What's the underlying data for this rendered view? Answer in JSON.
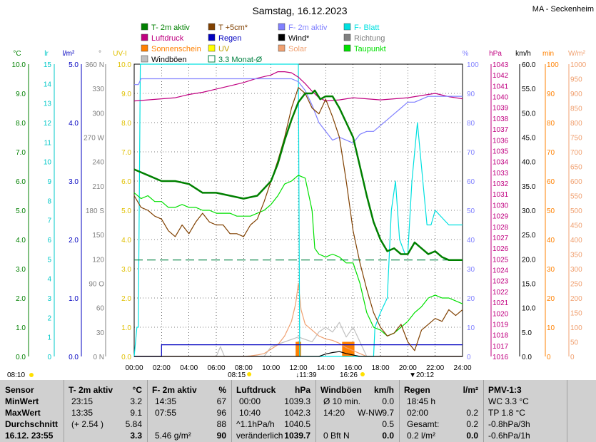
{
  "header": {
    "title": "Samstag, 16.12.2023",
    "station": "MA - Seckenheim"
  },
  "legend": [
    {
      "label": "T- 2m aktiv",
      "color": "#008000",
      "kind": "box"
    },
    {
      "label": "T +5cm*",
      "color": "#804000",
      "kind": "box"
    },
    {
      "label": "F- 2m aktiv",
      "color": "#8080ff",
      "kind": "box"
    },
    {
      "label": "F- Blatt",
      "color": "#00e0e0",
      "kind": "box"
    },
    {
      "label": "Luftdruck",
      "color": "#c00080",
      "kind": "box"
    },
    {
      "label": "Regen",
      "color": "#0000c0",
      "kind": "box"
    },
    {
      "label": "Wind*",
      "color": "#000000",
      "kind": "box"
    },
    {
      "label": "Richtung",
      "color": "#808080",
      "kind": "box"
    },
    {
      "label": "Sonnenschein",
      "color": "#ff8000",
      "kind": "box"
    },
    {
      "label": "UV",
      "color": "#ffff00",
      "kind": "box"
    },
    {
      "label": "Solar",
      "color": "#f0a070",
      "kind": "box"
    },
    {
      "label": "Taupunkt",
      "color": "#00e000",
      "kind": "box"
    },
    {
      "label": "Windböen",
      "color": "#c0c0c0",
      "kind": "box"
    },
    {
      "label": "3.3 Monat-Ø",
      "color": "#008040",
      "kind": "hollow"
    }
  ],
  "axes": {
    "unit_c": "°C",
    "unit_lr": "lr",
    "unit_lm2": "l/m²",
    "unit_deg": "°",
    "unit_uv": "UV-I",
    "unit_pct": "%",
    "unit_hpa": "hPa",
    "unit_kmh": "km/h",
    "unit_min": "min",
    "unit_wm2": "W/m²",
    "temp_ticks": [
      "0.0",
      "1.0",
      "2.0",
      "3.0",
      "4.0",
      "5.0",
      "6.0",
      "7.0",
      "8.0",
      "9.0",
      "10.0"
    ],
    "lr_ticks": [
      "0",
      "1",
      "2",
      "3",
      "4",
      "5",
      "6",
      "7",
      "8",
      "9",
      "10",
      "11",
      "12",
      "13",
      "14",
      "15"
    ],
    "rain_ticks": [
      "0.0",
      "1.0",
      "2.0",
      "3.0",
      "4.0",
      "5.0"
    ],
    "dir_ticks": [
      {
        "v": 0,
        "t": "0 N"
      },
      {
        "v": 30,
        "t": "30"
      },
      {
        "v": 60,
        "t": "60"
      },
      {
        "v": 90,
        "t": "90 O"
      },
      {
        "v": 120,
        "t": "120"
      },
      {
        "v": 150,
        "t": "150"
      },
      {
        "v": 180,
        "t": "180 S"
      },
      {
        "v": 210,
        "t": "210"
      },
      {
        "v": 240,
        "t": "240"
      },
      {
        "v": 270,
        "t": "270 W"
      },
      {
        "v": 300,
        "t": "300"
      },
      {
        "v": 330,
        "t": "330"
      },
      {
        "v": 360,
        "t": "360 N"
      }
    ],
    "uv_ticks": [
      "0.0",
      "1.0",
      "2.0",
      "3.0",
      "4.0",
      "5.0",
      "6.0",
      "7.0",
      "8.0",
      "9.0",
      "10.0"
    ],
    "pct_ticks": [
      "0",
      "10",
      "20",
      "30",
      "40",
      "50",
      "60",
      "70",
      "80",
      "90",
      "100"
    ],
    "hpa_ticks": [
      "1016",
      "1017",
      "1018",
      "1019",
      "1020",
      "1021",
      "1022",
      "1023",
      "1024",
      "1025",
      "1026",
      "1027",
      "1028",
      "1029",
      "1030",
      "1031",
      "1032",
      "1033",
      "1034",
      "1035",
      "1036",
      "1037",
      "1038",
      "1039",
      "1040",
      "1041",
      "1042",
      "1043"
    ],
    "kmh_ticks": [
      "0.0",
      "5.0",
      "10.0",
      "15.0",
      "20.0",
      "25.0",
      "30.0",
      "35.0",
      "40.0",
      "45.0",
      "50.0",
      "55.0",
      "60.0"
    ],
    "min_ticks": [
      "0",
      "10",
      "20",
      "30",
      "40",
      "50",
      "60",
      "70",
      "80",
      "90",
      "100"
    ],
    "wm2_ticks": [
      "0",
      "50",
      "100",
      "150",
      "200",
      "250",
      "300",
      "350",
      "400",
      "450",
      "500",
      "550",
      "600",
      "650",
      "700",
      "750",
      "800",
      "850",
      "900",
      "950",
      "1000"
    ],
    "x_ticks": [
      "00:00",
      "02:00",
      "04:00",
      "06:00",
      "08:00",
      "10:00",
      "12:00",
      "14:00",
      "16:00",
      "18:00",
      "20:00",
      "22:00",
      "24:00"
    ]
  },
  "sun_marks": {
    "sunrise_civil": "08:10",
    "sunrise": "08:15",
    "noon": "11:39",
    "sunset": "16:26",
    "sunset_civil": "20:12"
  },
  "chart_data": {
    "type": "line",
    "x_unit": "hours",
    "xlim": [
      0,
      24
    ],
    "series": [
      {
        "name": "T- 2m aktiv",
        "axis": "temp",
        "color": "#008000",
        "x": [
          0,
          1,
          2,
          3,
          4,
          5,
          6,
          7,
          8,
          9,
          10,
          10.5,
          11,
          11.5,
          12,
          12.5,
          13,
          13.2,
          13.6,
          14,
          14.5,
          15,
          15.5,
          16,
          16.5,
          17,
          17.5,
          18,
          18.5,
          19,
          19.5,
          20,
          20.5,
          21,
          21.5,
          22,
          22.5,
          23,
          23.5,
          24
        ],
        "y": [
          6.4,
          6.2,
          6.0,
          6.0,
          5.9,
          5.6,
          5.6,
          5.5,
          5.4,
          5.5,
          6.0,
          6.6,
          7.4,
          8.1,
          8.7,
          9.0,
          9.0,
          9.1,
          8.8,
          8.9,
          8.9,
          8.5,
          8.0,
          7.5,
          6.5,
          5.5,
          4.6,
          4.0,
          3.6,
          3.7,
          3.5,
          3.5,
          3.9,
          3.7,
          3.5,
          3.6,
          3.4,
          3.3,
          3.3,
          3.3
        ]
      },
      {
        "name": "T +5cm*",
        "axis": "temp",
        "color": "#804000",
        "x": [
          0,
          0.5,
          1,
          1.5,
          2,
          2.5,
          3,
          3.5,
          4,
          4.5,
          5,
          5.5,
          6,
          6.5,
          7,
          7.5,
          8,
          8.5,
          9,
          9.5,
          10,
          10.5,
          11,
          11.5,
          12,
          12.5,
          13,
          13.5,
          14,
          14.5,
          15,
          15.5,
          16,
          16.5,
          17,
          17.5,
          18,
          18.5,
          19,
          19.5,
          20,
          20.5,
          21,
          21.5,
          22,
          22.5,
          23,
          23.5,
          24
        ],
        "y": [
          5.5,
          5.1,
          5.0,
          4.8,
          4.7,
          4.3,
          4.1,
          4.5,
          4.2,
          4.6,
          4.9,
          4.6,
          4.5,
          4.5,
          4.2,
          4.2,
          4.1,
          4.5,
          4.7,
          5.3,
          6.0,
          6.7,
          7.5,
          8.5,
          9.2,
          9.0,
          8.5,
          8.3,
          8.8,
          8.2,
          7.5,
          6.0,
          4.3,
          3.2,
          2.3,
          1.5,
          1.0,
          0.7,
          0.8,
          1.1,
          0.5,
          0.2,
          0.9,
          1.1,
          1.3,
          1.2,
          1.6,
          1.4,
          1.6
        ]
      },
      {
        "name": "Taupunkt",
        "axis": "temp",
        "color": "#00e000",
        "x": [
          0,
          0.5,
          1,
          1.5,
          2,
          2.5,
          3,
          3.5,
          4,
          4.5,
          5,
          5.5,
          6,
          6.5,
          7,
          7.5,
          8,
          8.5,
          9,
          9.5,
          10,
          10.5,
          11,
          11.5,
          12,
          12.5,
          13,
          13.2,
          13.5,
          14,
          14.5,
          15,
          15.5,
          16,
          16.5,
          17,
          17.5,
          18,
          18.5,
          19,
          19.5,
          20,
          20.5,
          21,
          21.5,
          22,
          22.5,
          23,
          23.5,
          24
        ],
        "y": [
          5.6,
          5.4,
          5.5,
          5.3,
          5.3,
          5.1,
          5.1,
          5.2,
          5.1,
          5.1,
          5.0,
          5.0,
          4.9,
          4.9,
          4.9,
          4.8,
          4.8,
          4.8,
          4.9,
          5.0,
          5.2,
          5.5,
          5.9,
          6.0,
          6.2,
          6.1,
          5.0,
          3.7,
          3.5,
          3.4,
          3.5,
          3.4,
          3.2,
          3.2,
          2.5,
          1.5,
          1.0,
          0.9,
          0.7,
          0.8,
          1.0,
          1.2,
          1.5,
          1.7,
          2.0,
          2.1,
          2.0,
          2.0,
          1.9,
          1.8
        ]
      },
      {
        "name": "F- 2m aktiv",
        "axis": "pct",
        "color": "#8080ff",
        "x": [
          0,
          0.3,
          0.5,
          1,
          2,
          3,
          4,
          5,
          6,
          7,
          8,
          9,
          10,
          11,
          11.5,
          12,
          12.5,
          13,
          13.5,
          14,
          14.5,
          15,
          15.5,
          16,
          16.5,
          17,
          17.5,
          18,
          18.5,
          19,
          19.5,
          20,
          20.5,
          21,
          21.5,
          22,
          22.5,
          23,
          23.5,
          24
        ],
        "y": [
          93,
          93,
          95,
          95,
          95,
          95,
          95,
          95,
          95,
          95,
          95,
          95,
          95,
          95,
          95,
          94,
          91,
          86,
          80,
          77,
          74,
          75,
          74,
          73,
          76,
          77,
          77,
          79,
          81,
          83,
          85,
          87,
          87,
          88,
          89,
          89,
          89,
          89,
          89,
          89
        ]
      },
      {
        "name": "F- Blatt",
        "axis": "pct",
        "color": "#00e0e0",
        "x": [
          0,
          0.2,
          0.3,
          0.45,
          0.6,
          11.9,
          12,
          12.1,
          17.5,
          17.6,
          18,
          18.5,
          18.8,
          19.1,
          19.4,
          19.8,
          20,
          20.3,
          20.7,
          21.1,
          21.4,
          21.7,
          22,
          23,
          24
        ],
        "y": [
          0,
          10,
          10,
          100,
          100,
          100,
          100,
          0,
          0,
          10,
          15,
          20,
          50,
          60,
          40,
          35,
          35,
          60,
          80,
          60,
          45,
          45,
          50,
          45,
          45
        ]
      },
      {
        "name": "Luftdruck",
        "axis": "hpa",
        "color": "#c00080",
        "x": [
          0,
          1,
          2,
          3,
          4,
          5,
          6,
          7,
          8,
          9,
          10,
          10.5,
          11,
          11.5,
          12,
          12.5,
          13,
          13.5,
          14,
          15,
          16,
          17,
          18,
          19,
          20,
          21,
          22,
          23,
          24
        ],
        "y": [
          1039.6,
          1039.7,
          1039.8,
          1039.9,
          1040.2,
          1040.4,
          1040.7,
          1041.0,
          1041.3,
          1041.7,
          1042.0,
          1042.3,
          1042.3,
          1042.2,
          1041.8,
          1041.2,
          1040.5,
          1039.9,
          1039.6,
          1039.7,
          1039.9,
          1039.8,
          1039.7,
          1039.8,
          1039.9,
          1040.1,
          1040.3,
          1040.0,
          1039.8
        ]
      },
      {
        "name": "Regen",
        "axis": "rain",
        "color": "#0000c0",
        "x": [
          0,
          2.0,
          2.0,
          24
        ],
        "y": [
          0,
          0,
          0.2,
          0.2
        ]
      },
      {
        "name": "Windböen",
        "axis": "kmh",
        "color": "#c0c0c0",
        "x": [
          0,
          6.0,
          6.3,
          6.6,
          7.5,
          9.5,
          10,
          11,
          12,
          13,
          13.5,
          14,
          14.5,
          15,
          15.5,
          16,
          16.5,
          17,
          24
        ],
        "y": [
          0,
          0,
          2,
          0,
          0,
          0,
          2,
          3,
          4,
          3,
          5,
          6,
          5,
          7,
          4,
          6,
          3,
          0,
          0
        ]
      },
      {
        "name": "Wind*",
        "axis": "kmh",
        "color": "#000000",
        "x": [
          0,
          13.5,
          14,
          14.5,
          15,
          15.5,
          16,
          16.5,
          17,
          24
        ],
        "y": [
          0,
          0,
          0.5,
          0.8,
          1.0,
          0.6,
          0.3,
          0,
          0,
          0
        ]
      },
      {
        "name": "Solar",
        "axis": "wm2",
        "color": "#f0a070",
        "x": [
          0,
          8.0,
          8.5,
          9,
          9.5,
          10,
          10.5,
          11,
          11.5,
          11.8,
          12,
          12.2,
          12.5,
          13,
          13.5,
          14,
          14.5,
          15,
          15.5,
          16,
          16.5,
          17,
          24
        ],
        "y": [
          0,
          0,
          2,
          5,
          10,
          25,
          40,
          70,
          120,
          180,
          250,
          160,
          110,
          90,
          70,
          60,
          55,
          45,
          30,
          20,
          10,
          0,
          0
        ]
      },
      {
        "name": "3.3 Monat-Ø",
        "axis": "temp",
        "color": "#008040",
        "dashed": true,
        "x": [
          0,
          24
        ],
        "y": [
          3.3,
          3.3
        ]
      }
    ],
    "sunshine": {
      "name": "Sonnenschein",
      "axis": "min",
      "color": "#ff8000",
      "bars": [
        {
          "x": 11.8,
          "w": 0.4,
          "v": 5
        },
        {
          "x": 15.2,
          "w": 0.9,
          "v": 5
        }
      ]
    }
  },
  "stats": {
    "sensor": {
      "h": "Sensor",
      "r1": "MinWert",
      "r2": "MaxWert",
      "r3": "Durchschnitt",
      "r4": "16.12. 23:55"
    },
    "temp": {
      "h": "T- 2m aktiv",
      "u": "°C",
      "t1": "23:15",
      "v1": "3.2",
      "t2": "13:35",
      "v2": "9.1",
      "t3": "(+ 2.54 )",
      "v3": "5.84",
      "v4": "3.3"
    },
    "hum": {
      "h": "F- 2m aktiv",
      "u": "%",
      "t1": "14:35",
      "v1": "67",
      "t2": "07:55",
      "v2": "96",
      "v3": "88",
      "t4": "5.46 g/m²",
      "v4": "90"
    },
    "press": {
      "h": "Luftdruck",
      "u": "hPa",
      "t1": "00:00",
      "v1": "1039.3",
      "t2": "10:40",
      "v2": "1042.3",
      "t3": "^1.1hPa/h",
      "v3": "1040.5",
      "t4": "veränderlich",
      "v4": "1039.7"
    },
    "gust": {
      "h": "Windböen",
      "u": "km/h",
      "t1": "Ø 10 min.",
      "v1": "0.0",
      "t2": "14:20",
      "d2": "W-NW",
      "v2": "9.7",
      "v3": "0.5",
      "t4": "0 Bft N",
      "v4": "0.0"
    },
    "rain": {
      "h": "Regen",
      "u": "l/m²",
      "t1": "18:45 h",
      "t2": "02:00",
      "v2": "0.2",
      "t3": "Gesamt:",
      "v3": "0.2",
      "t4": "0.2 l/m²",
      "v4": "0.0"
    },
    "pmv": {
      "h": "PMV-1:3",
      "r1": "WC 3.3 °C",
      "r2": "TP 1.8 °C",
      "r3": "-0.8hPa/3h",
      "r4": "-0.6hPa/1h"
    }
  }
}
